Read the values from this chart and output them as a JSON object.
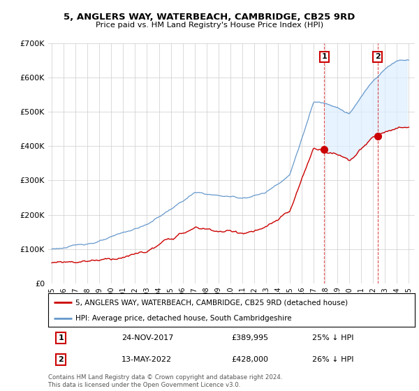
{
  "title": "5, ANGLERS WAY, WATERBEACH, CAMBRIDGE, CB25 9RD",
  "subtitle": "Price paid vs. HM Land Registry's House Price Index (HPI)",
  "legend_line1": "5, ANGLERS WAY, WATERBEACH, CAMBRIDGE, CB25 9RD (detached house)",
  "legend_line2": "HPI: Average price, detached house, South Cambridgeshire",
  "footer": "Contains HM Land Registry data © Crown copyright and database right 2024.\nThis data is licensed under the Open Government Licence v3.0.",
  "sale1_label": "1",
  "sale1_date": "24-NOV-2017",
  "sale1_price": "£389,995",
  "sale1_hpi": "25% ↓ HPI",
  "sale2_label": "2",
  "sale2_date": "13-MAY-2022",
  "sale2_price": "£428,000",
  "sale2_hpi": "26% ↓ HPI",
  "red_color": "#cc0000",
  "blue_color": "#6699cc",
  "fill_color": "#ddeeff",
  "background_color": "#ffffff",
  "plot_bg_color": "#ffffff",
  "grid_color": "#cccccc",
  "ylim": [
    0,
    700000
  ],
  "xlim_start": 1994.7,
  "xlim_end": 2025.5,
  "sale1_year": 2017.9,
  "sale1_price_val": 389995,
  "sale2_year": 2022.37,
  "sale2_price_val": 428000
}
